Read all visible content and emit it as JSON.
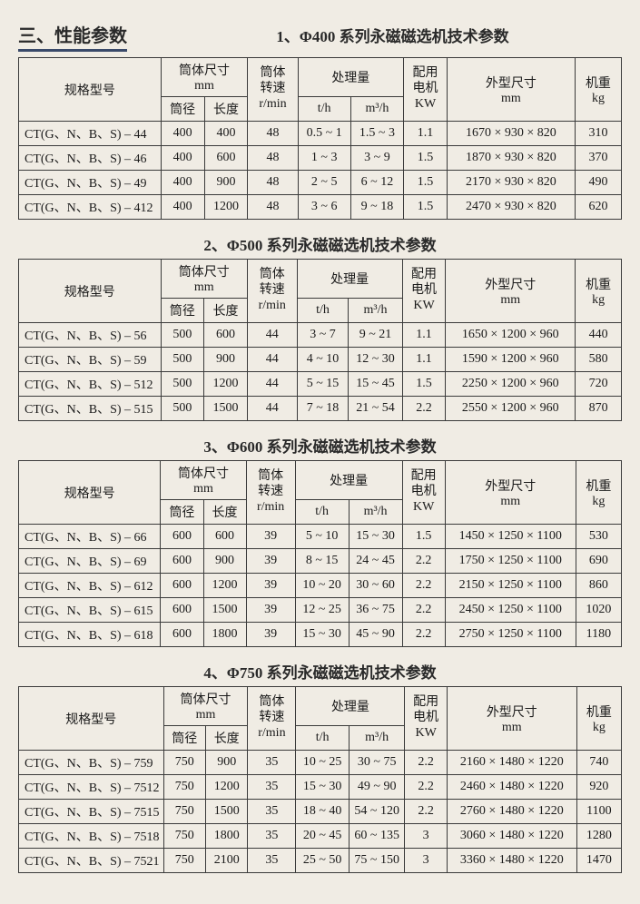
{
  "page_title": "三、性能参数",
  "headers": {
    "model": "规格型号",
    "cyl_size": "筒体尺寸",
    "mm": "mm",
    "diameter": "筒径",
    "length": "长度",
    "speed": "筒体\n转速",
    "rpm": "r/min",
    "capacity": "处理量",
    "th": "t/h",
    "m3h": "m³/h",
    "motor": "配用\n电机",
    "kw": "KW",
    "dims": "外型尺寸",
    "dims_mm": "mm",
    "weight": "机重",
    "kg": "kg"
  },
  "sections": [
    {
      "title": "1、Φ400 系列永磁磁选机技术参数",
      "rows": [
        [
          "CT(G、N、B、S) – 44",
          "400",
          "400",
          "48",
          "0.5 ~ 1",
          "1.5 ~ 3",
          "1.1",
          "1670 × 930 × 820",
          "310"
        ],
        [
          "CT(G、N、B、S) – 46",
          "400",
          "600",
          "48",
          "1 ~ 3",
          "3 ~ 9",
          "1.5",
          "1870 × 930 × 820",
          "370"
        ],
        [
          "CT(G、N、B、S) – 49",
          "400",
          "900",
          "48",
          "2 ~ 5",
          "6 ~ 12",
          "1.5",
          "2170 × 930 × 820",
          "490"
        ],
        [
          "CT(G、N、B、S) – 412",
          "400",
          "1200",
          "48",
          "3 ~ 6",
          "9 ~ 18",
          "1.5",
          "2470 × 930 × 820",
          "620"
        ]
      ]
    },
    {
      "title": "2、Φ500 系列永磁磁选机技术参数",
      "rows": [
        [
          "CT(G、N、B、S) – 56",
          "500",
          "600",
          "44",
          "3 ~ 7",
          "9 ~ 21",
          "1.1",
          "1650 × 1200 × 960",
          "440"
        ],
        [
          "CT(G、N、B、S) – 59",
          "500",
          "900",
          "44",
          "4 ~ 10",
          "12 ~ 30",
          "1.1",
          "1590 × 1200 × 960",
          "580"
        ],
        [
          "CT(G、N、B、S) – 512",
          "500",
          "1200",
          "44",
          "5 ~ 15",
          "15 ~ 45",
          "1.5",
          "2250 × 1200 × 960",
          "720"
        ],
        [
          "CT(G、N、B、S) – 515",
          "500",
          "1500",
          "44",
          "7 ~ 18",
          "21 ~ 54",
          "2.2",
          "2550 × 1200 × 960",
          "870"
        ]
      ]
    },
    {
      "title": "3、Φ600 系列永磁磁选机技术参数",
      "rows": [
        [
          "CT(G、N、B、S) – 66",
          "600",
          "600",
          "39",
          "5 ~ 10",
          "15 ~ 30",
          "1.5",
          "1450 × 1250 × 1100",
          "530"
        ],
        [
          "CT(G、N、B、S) – 69",
          "600",
          "900",
          "39",
          "8 ~ 15",
          "24 ~ 45",
          "2.2",
          "1750 × 1250 × 1100",
          "690"
        ],
        [
          "CT(G、N、B、S) – 612",
          "600",
          "1200",
          "39",
          "10 ~ 20",
          "30 ~ 60",
          "2.2",
          "2150 × 1250 × 1100",
          "860"
        ],
        [
          "CT(G、N、B、S) – 615",
          "600",
          "1500",
          "39",
          "12 ~ 25",
          "36 ~ 75",
          "2.2",
          "2450 × 1250 × 1100",
          "1020"
        ],
        [
          "CT(G、N、B、S) – 618",
          "600",
          "1800",
          "39",
          "15 ~ 30",
          "45 ~ 90",
          "2.2",
          "2750 × 1250 × 1100",
          "1180"
        ]
      ]
    },
    {
      "title": "4、Φ750 系列永磁磁选机技术参数",
      "rows": [
        [
          "CT(G、N、B、S) – 759",
          "750",
          "900",
          "35",
          "10 ~ 25",
          "30 ~ 75",
          "2.2",
          "2160 × 1480 × 1220",
          "740"
        ],
        [
          "CT(G、N、B、S) – 7512",
          "750",
          "1200",
          "35",
          "15 ~ 30",
          "49 ~ 90",
          "2.2",
          "2460 × 1480 × 1220",
          "920"
        ],
        [
          "CT(G、N、B、S) – 7515",
          "750",
          "1500",
          "35",
          "18 ~ 40",
          "54 ~ 120",
          "2.2",
          "2760 × 1480 × 1220",
          "1100"
        ],
        [
          "CT(G、N、B、S) – 7518",
          "750",
          "1800",
          "35",
          "20 ~ 45",
          "60 ~ 135",
          "3",
          "3060 × 1480 × 1220",
          "1280"
        ],
        [
          "CT(G、N、B、S) – 7521",
          "750",
          "2100",
          "35",
          "25 ~ 50",
          "75 ~ 150",
          "3",
          "3360 × 1480 × 1220",
          "1470"
        ]
      ]
    }
  ],
  "style": {
    "background_color": "#f0ece4",
    "border_color": "#3a3a3a",
    "text_color": "#1a1a1a",
    "heading_color": "#2a2a2a",
    "underline_color": "#3a4a6a",
    "font_family": "SimSun, Songti SC, serif",
    "body_font_size": 14,
    "heading_font_size": 20,
    "subheading_font_size": 17
  }
}
